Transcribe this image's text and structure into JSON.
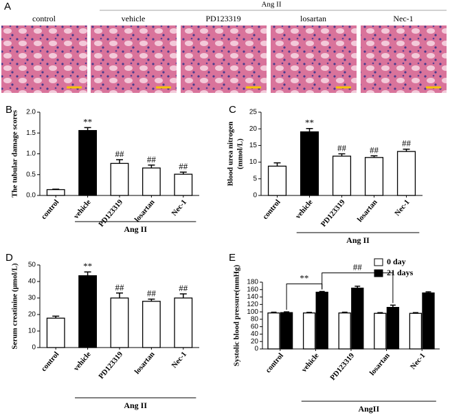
{
  "panel_a": {
    "panel_label": "A",
    "group_label": "Ang II",
    "images": [
      "control",
      "vehicle",
      "PD123319",
      "losartan",
      "Nec-1"
    ]
  },
  "chart_data": [
    {
      "type": "bar",
      "panel_label": "B",
      "ylabel": [
        "The tubular damage scores"
      ],
      "categories": [
        "control",
        "vehicle",
        "PD123319",
        "losartan",
        "Nec-1"
      ],
      "values": [
        0.14,
        1.56,
        0.77,
        0.66,
        0.51
      ],
      "errors": [
        0.01,
        0.07,
        0.09,
        0.07,
        0.05
      ],
      "colors": [
        "#ffffff",
        "#000000",
        "#ffffff",
        "#ffffff",
        "#ffffff"
      ],
      "annotations": [
        null,
        "**",
        "##",
        "##",
        "##"
      ],
      "ylim": [
        0,
        2
      ],
      "yticks": [
        {
          "value": 0,
          "label": "0.0"
        },
        0.5,
        {
          "value": 1,
          "label": "1.0"
        },
        1.5,
        {
          "value": 2,
          "label": "2.0"
        }
      ],
      "group_label": "Ang II"
    },
    {
      "type": "bar",
      "panel_label": "C",
      "ylabel": [
        "Blood urea nitrogen",
        "(mmol/L)"
      ],
      "categories": [
        "control",
        "vehicle",
        "PD123319",
        "losartan",
        "Nec-1"
      ],
      "values": [
        8.8,
        19.1,
        11.8,
        11.4,
        13.2
      ],
      "errors": [
        1.0,
        1.0,
        0.7,
        0.5,
        0.7
      ],
      "colors": [
        "#ffffff",
        "#000000",
        "#ffffff",
        "#ffffff",
        "#ffffff"
      ],
      "annotations": [
        null,
        "**",
        "##",
        "##",
        "##"
      ],
      "ylim": [
        0,
        25
      ],
      "yticks": [
        0,
        5,
        10,
        15,
        20,
        25
      ],
      "group_label": "Ang II"
    },
    {
      "type": "bar",
      "panel_label": "D",
      "ylabel": [
        "Serum creatinine (μmol/L)"
      ],
      "categories": [
        "control",
        "vehicle",
        "PD123319",
        "losartan",
        "Nec-1"
      ],
      "values": [
        17.8,
        43.5,
        30,
        28,
        30
      ],
      "errors": [
        1.2,
        2.3,
        3,
        1.3,
        2.5
      ],
      "colors": [
        "#ffffff",
        "#000000",
        "#ffffff",
        "#ffffff",
        "#ffffff"
      ],
      "annotations": [
        null,
        "**",
        "##",
        "##",
        "##"
      ],
      "ylim": [
        0,
        50
      ],
      "yticks": [
        0,
        10,
        20,
        30,
        40,
        50
      ],
      "group_label": "Ang II"
    },
    {
      "type": "grouped_bar",
      "panel_label": "E",
      "ylabel": [
        "Systolic blood pressure(mmHg)"
      ],
      "categories": [
        "control",
        "vehicle",
        "PD123319",
        "losartan",
        "Nec-1"
      ],
      "series": [
        {
          "name": "0 day",
          "color": "#ffffff",
          "values": [
            97,
            97,
            97,
            96,
            96
          ],
          "errors": [
            2,
            1.5,
            2,
            2,
            2
          ]
        },
        {
          "name": "21 days",
          "color": "#000000",
          "values": [
            98,
            153,
            164,
            112,
            151
          ],
          "errors": [
            2,
            2,
            5,
            6,
            3
          ]
        }
      ],
      "comparisons": [
        {
          "label": "**",
          "between": [
            0,
            1
          ]
        },
        {
          "label": "##",
          "between": [
            1,
            3
          ]
        }
      ],
      "ylim": [
        0,
        180
      ],
      "yticks": [
        0,
        20,
        40,
        60,
        80,
        100,
        120,
        140,
        160,
        180
      ],
      "group_label": "AngII",
      "legend": "top-right"
    }
  ]
}
